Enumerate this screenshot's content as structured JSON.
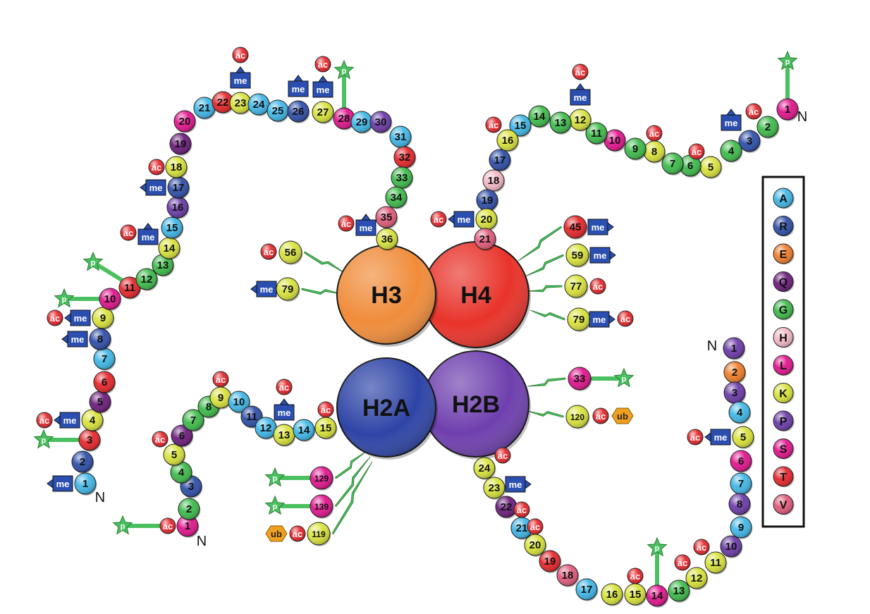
{
  "colors": {
    "A": "#3fb6e6",
    "R": "#2e4ea8",
    "E": "#f07c28",
    "Q": "#6a1c7a",
    "G": "#3dba4a",
    "H": "#f2b8c4",
    "L": "#e0148c",
    "K": "#d8e23a",
    "P": "#6a3aa6",
    "S": "#e0148c",
    "T": "#e5252a",
    "V": "#e05a7a",
    "ac": "#e5252a",
    "me": "#2a4fb0",
    "ub": "#f0a020",
    "p": "#4ac060"
  },
  "core": {
    "H3": {
      "label": "H3",
      "color": "#f08c3a"
    },
    "H4": {
      "label": "H4",
      "color": "#e8332a"
    },
    "H2A": {
      "label": "H2A",
      "color": "#2e44a6"
    },
    "H2B": {
      "label": "H2B",
      "color": "#6e3fae"
    }
  },
  "legend": [
    "A",
    "R",
    "E",
    "Q",
    "G",
    "H",
    "L",
    "K",
    "P",
    "S",
    "T",
    "V"
  ],
  "n_label": "N",
  "mod_labels": {
    "ac": "ac",
    "me": "me",
    "ub": "ub",
    "p": "p"
  },
  "tails": {
    "h3": [
      {
        "n": "1",
        "aa": "A"
      },
      {
        "n": "2",
        "aa": "R"
      },
      {
        "n": "3",
        "aa": "T"
      },
      {
        "n": "4",
        "aa": "K"
      },
      {
        "n": "5",
        "aa": "Q"
      },
      {
        "n": "6",
        "aa": "T"
      },
      {
        "n": "7",
        "aa": "A"
      },
      {
        "n": "8",
        "aa": "R"
      },
      {
        "n": "9",
        "aa": "K"
      },
      {
        "n": "10",
        "aa": "S"
      },
      {
        "n": "11",
        "aa": "T"
      },
      {
        "n": "12",
        "aa": "G"
      },
      {
        "n": "13",
        "aa": "G"
      },
      {
        "n": "14",
        "aa": "K"
      },
      {
        "n": "15",
        "aa": "A"
      },
      {
        "n": "16",
        "aa": "P"
      },
      {
        "n": "17",
        "aa": "R"
      },
      {
        "n": "18",
        "aa": "K"
      },
      {
        "n": "19",
        "aa": "Q"
      },
      {
        "n": "20",
        "aa": "L"
      },
      {
        "n": "21",
        "aa": "A"
      },
      {
        "n": "22",
        "aa": "T"
      },
      {
        "n": "23",
        "aa": "K"
      },
      {
        "n": "24",
        "aa": "A"
      },
      {
        "n": "25",
        "aa": "A"
      },
      {
        "n": "26",
        "aa": "R"
      },
      {
        "n": "27",
        "aa": "K"
      },
      {
        "n": "28",
        "aa": "S"
      },
      {
        "n": "29",
        "aa": "A"
      },
      {
        "n": "30",
        "aa": "P"
      },
      {
        "n": "31",
        "aa": "A"
      },
      {
        "n": "32",
        "aa": "T"
      },
      {
        "n": "33",
        "aa": "G"
      },
      {
        "n": "34",
        "aa": "G"
      },
      {
        "n": "35",
        "aa": "V"
      },
      {
        "n": "36",
        "aa": "K"
      }
    ],
    "h4": [
      {
        "n": "1",
        "aa": "S"
      },
      {
        "n": "2",
        "aa": "G"
      },
      {
        "n": "3",
        "aa": "R"
      },
      {
        "n": "4",
        "aa": "G"
      },
      {
        "n": "5",
        "aa": "K"
      },
      {
        "n": "6",
        "aa": "G"
      },
      {
        "n": "7",
        "aa": "G"
      },
      {
        "n": "8",
        "aa": "K"
      },
      {
        "n": "9",
        "aa": "G"
      },
      {
        "n": "10",
        "aa": "L"
      },
      {
        "n": "11",
        "aa": "G"
      },
      {
        "n": "12",
        "aa": "K"
      },
      {
        "n": "13",
        "aa": "G"
      },
      {
        "n": "14",
        "aa": "G"
      },
      {
        "n": "15",
        "aa": "A"
      },
      {
        "n": "16",
        "aa": "K"
      },
      {
        "n": "17",
        "aa": "R"
      },
      {
        "n": "18",
        "aa": "H"
      },
      {
        "n": "19",
        "aa": "R"
      },
      {
        "n": "20",
        "aa": "K"
      },
      {
        "n": "21",
        "aa": "V"
      }
    ],
    "h2a": [
      {
        "n": "1",
        "aa": "S"
      },
      {
        "n": "2",
        "aa": "G"
      },
      {
        "n": "3",
        "aa": "R"
      },
      {
        "n": "4",
        "aa": "G"
      },
      {
        "n": "5",
        "aa": "K"
      },
      {
        "n": "6",
        "aa": "Q"
      },
      {
        "n": "7",
        "aa": "G"
      },
      {
        "n": "8",
        "aa": "G"
      },
      {
        "n": "9",
        "aa": "K"
      },
      {
        "n": "10",
        "aa": "A"
      },
      {
        "n": "11",
        "aa": "R"
      },
      {
        "n": "12",
        "aa": "A"
      },
      {
        "n": "13",
        "aa": "K"
      },
      {
        "n": "14",
        "aa": "A"
      },
      {
        "n": "15",
        "aa": "K"
      }
    ],
    "h2b": [
      {
        "n": "1",
        "aa": "P"
      },
      {
        "n": "2",
        "aa": "E"
      },
      {
        "n": "3",
        "aa": "P"
      },
      {
        "n": "4",
        "aa": "A"
      },
      {
        "n": "5",
        "aa": "K"
      },
      {
        "n": "6",
        "aa": "S"
      },
      {
        "n": "7",
        "aa": "A"
      },
      {
        "n": "8",
        "aa": "P"
      },
      {
        "n": "9",
        "aa": "A"
      },
      {
        "n": "10",
        "aa": "P"
      },
      {
        "n": "11",
        "aa": "K"
      },
      {
        "n": "12",
        "aa": "K"
      },
      {
        "n": "13",
        "aa": "G"
      },
      {
        "n": "14",
        "aa": "S"
      },
      {
        "n": "15",
        "aa": "K"
      },
      {
        "n": "16",
        "aa": "K"
      },
      {
        "n": "17",
        "aa": "A"
      },
      {
        "n": "18",
        "aa": "V"
      },
      {
        "n": "19",
        "aa": "T"
      },
      {
        "n": "20",
        "aa": "K"
      },
      {
        "n": "21",
        "aa": "A"
      },
      {
        "n": "22",
        "aa": "Q"
      },
      {
        "n": "23",
        "aa": "K"
      },
      {
        "n": "24",
        "aa": "K"
      }
    ]
  },
  "core_residues": {
    "h3": [
      {
        "n": "56",
        "aa": "K"
      },
      {
        "n": "79",
        "aa": "K"
      }
    ],
    "h4": [
      {
        "n": "45",
        "aa": "T"
      },
      {
        "n": "59",
        "aa": "K"
      },
      {
        "n": "77",
        "aa": "K"
      },
      {
        "n": "79",
        "aa": "K"
      }
    ],
    "h2a": [
      {
        "n": "129",
        "aa": "S"
      },
      {
        "n": "139",
        "aa": "S"
      },
      {
        "n": "119",
        "aa": "K"
      }
    ],
    "h2b": [
      {
        "n": "33",
        "aa": "S"
      },
      {
        "n": "120",
        "aa": "K"
      }
    ]
  }
}
